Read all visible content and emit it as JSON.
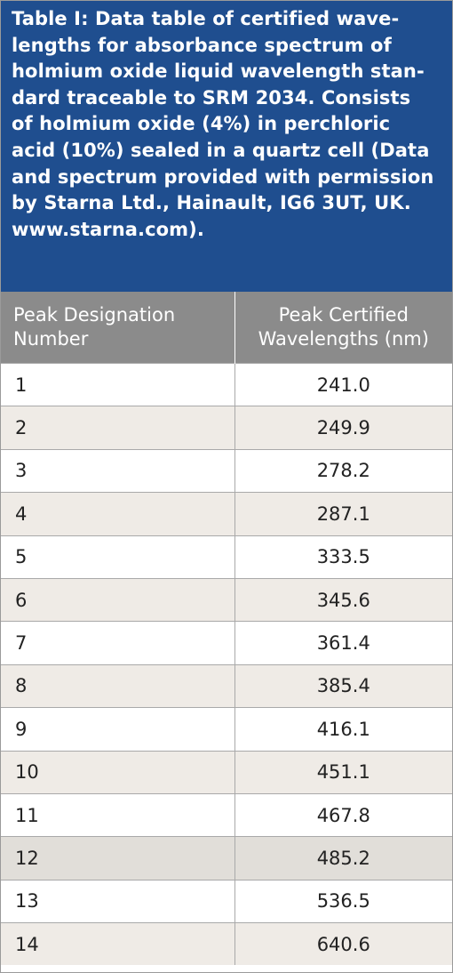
{
  "table": {
    "title": "Table I: Data table of certified wave-\nlengths for absorbance spectrum of\nholmium oxide liquid wavelength stan-\ndard traceable to SRM 2034. Consists\nof holmium oxide (4%) in perchloric\nacid (10%) sealed in a quartz cell (Data\nand spectrum provided with permission\nby Starna Ltd., Hainault, IG6 3UT, UK.\nwww.starna.com).",
    "header": [
      "Peak Designation\nNumber",
      "Peak Certified\nWavelengths (nm)"
    ],
    "rows": [
      [
        "1",
        "241.0"
      ],
      [
        "2",
        "249.9"
      ],
      [
        "3",
        "278.2"
      ],
      [
        "4",
        "287.1"
      ],
      [
        "5",
        "333.5"
      ],
      [
        "6",
        "345.6"
      ],
      [
        "7",
        "361.4"
      ],
      [
        "8",
        "385.4"
      ],
      [
        "9",
        "416.1"
      ],
      [
        "10",
        "451.1"
      ],
      [
        "11",
        "467.8"
      ],
      [
        "12",
        "485.2"
      ],
      [
        "13",
        "536.5"
      ],
      [
        "14",
        "640.6"
      ]
    ]
  }
}
